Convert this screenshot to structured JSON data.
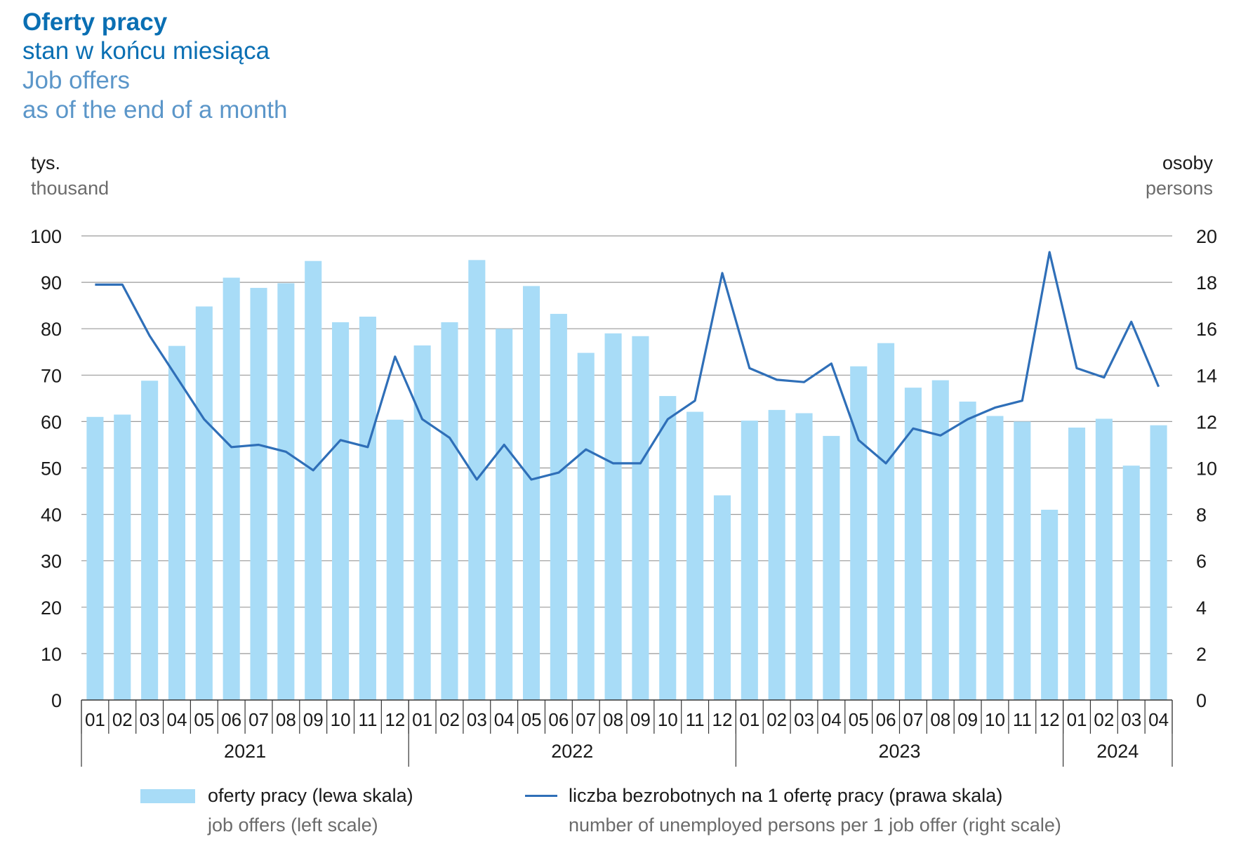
{
  "title": {
    "pl_title": "Oferty pracy",
    "pl_subtitle": "stan w końcu miesiąca",
    "en_title": "Job offers",
    "en_subtitle": "as of the end of a month"
  },
  "units": {
    "left_pl": "tys.",
    "left_en": "thousand",
    "right_pl": "osoby",
    "right_en": "persons"
  },
  "legend": {
    "bars_pl": "oferty pracy (lewa skala)",
    "bars_en": "job offers (left scale)",
    "line_pl": "liczba bezrobotnych na 1 ofertę pracy (prawa skala)",
    "line_en": "number of unemployed persons per 1 job offer (right scale)"
  },
  "colors": {
    "bar": "#a8dcf7",
    "line": "#2f6fb8",
    "grid": "#9a9a9a",
    "title_dark": "#0a6fb3",
    "title_light": "#5b96c9"
  },
  "chart_data": {
    "type": "bar",
    "grid": true,
    "legend_placement": "bottom",
    "categories": [
      "01",
      "02",
      "03",
      "04",
      "05",
      "06",
      "07",
      "08",
      "09",
      "10",
      "11",
      "12",
      "01",
      "02",
      "03",
      "04",
      "05",
      "06",
      "07",
      "08",
      "09",
      "10",
      "11",
      "12",
      "01",
      "02",
      "03",
      "04",
      "05",
      "06",
      "07",
      "08",
      "09",
      "10",
      "11",
      "12",
      "01",
      "02",
      "03",
      "04"
    ],
    "years": [
      {
        "label": "2021",
        "months": 12
      },
      {
        "label": "2022",
        "months": 12
      },
      {
        "label": "2023",
        "months": 12
      },
      {
        "label": "2024",
        "months": 4
      }
    ],
    "ylim_left": [
      0,
      100
    ],
    "yticks_left": [
      0,
      10,
      20,
      30,
      40,
      50,
      60,
      70,
      80,
      90,
      100
    ],
    "ylim_right": [
      0,
      20
    ],
    "yticks_right": [
      0,
      2,
      4,
      6,
      8,
      10,
      12,
      14,
      16,
      18,
      20
    ],
    "series": [
      {
        "name": "oferty pracy (lewa skala)",
        "type": "bar",
        "axis": "left",
        "values": [
          61.0,
          61.5,
          68.8,
          76.3,
          84.8,
          91.0,
          88.8,
          89.8,
          94.6,
          81.4,
          82.6,
          60.4,
          76.4,
          81.4,
          94.8,
          80.0,
          89.2,
          83.2,
          74.8,
          79.0,
          78.4,
          65.5,
          62.1,
          44.1,
          60.2,
          62.5,
          61.8,
          56.9,
          71.9,
          76.9,
          67.3,
          68.9,
          64.3,
          61.2,
          60.0,
          41.0,
          58.7,
          60.6,
          50.5,
          59.2
        ]
      },
      {
        "name": "liczba bezrobotnych na 1 ofertę pracy (prawa skala)",
        "type": "line",
        "axis": "right",
        "values": [
          17.9,
          17.9,
          15.7,
          13.9,
          12.1,
          10.9,
          11.0,
          10.7,
          9.9,
          11.2,
          10.9,
          14.8,
          12.1,
          11.3,
          9.5,
          11.0,
          9.5,
          9.8,
          10.8,
          10.2,
          10.2,
          12.1,
          12.9,
          18.4,
          14.3,
          13.8,
          13.7,
          14.5,
          11.2,
          10.2,
          11.7,
          11.4,
          12.1,
          12.6,
          12.9,
          19.3,
          14.3,
          13.9,
          16.3,
          13.5
        ]
      }
    ]
  }
}
